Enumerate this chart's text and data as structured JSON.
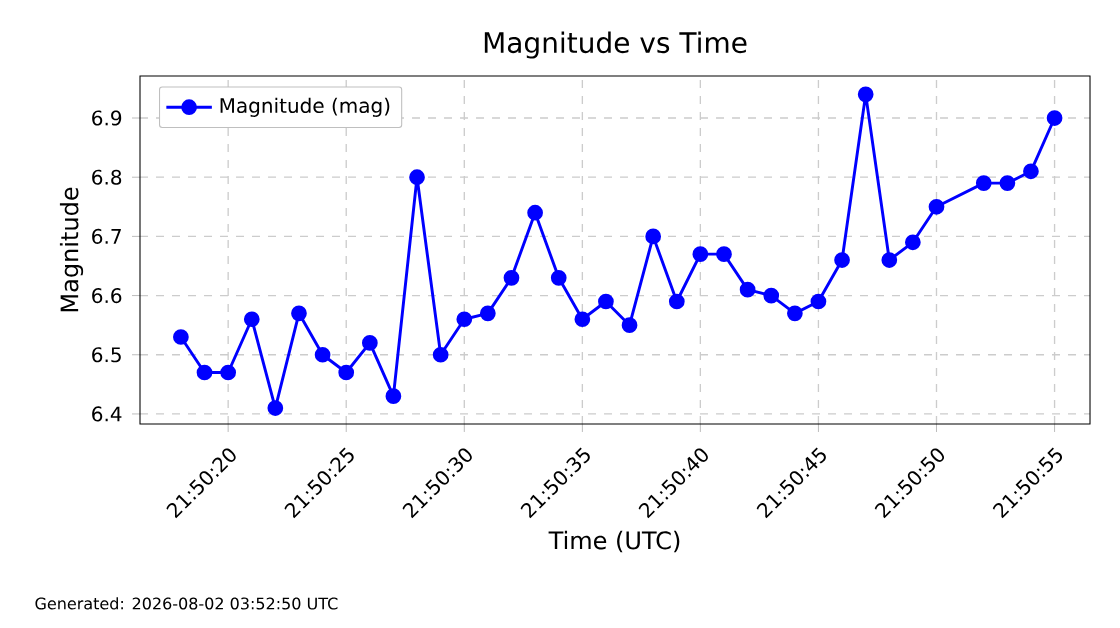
{
  "chart_data": {
    "type": "line",
    "title": "Magnitude vs Time",
    "xlabel": "Time (UTC)",
    "ylabel": "Magnitude",
    "x": [
      21.838333,
      21.838611,
      21.838889,
      21.839167,
      21.839444,
      21.839722,
      21.84,
      21.840278,
      21.840556,
      21.840833,
      21.841111,
      21.841389,
      21.841667,
      21.841944,
      21.842222,
      21.8425,
      21.842778,
      21.843056,
      21.843333,
      21.843611,
      21.843889,
      21.844167,
      21.844444,
      21.844722,
      21.845,
      21.845278,
      21.845556,
      21.845833,
      21.846111,
      21.846389,
      21.846667,
      21.846944,
      21.847222,
      21.847778,
      21.848056,
      21.848333,
      21.848611
    ],
    "series": [
      {
        "name": "Magnitude (mag)",
        "color": "#0000ff",
        "values": [
          6.53,
          6.47,
          6.47,
          6.56,
          6.41,
          6.57,
          6.5,
          6.47,
          6.52,
          6.43,
          6.8,
          6.5,
          6.56,
          6.57,
          6.63,
          6.74,
          6.63,
          6.56,
          6.59,
          6.55,
          6.7,
          6.59,
          6.67,
          6.67,
          6.61,
          6.6,
          6.57,
          6.59,
          6.66,
          6.94,
          6.66,
          6.69,
          6.75,
          6.79,
          6.79,
          6.81,
          6.9
        ]
      }
    ],
    "xlim": [
      21.837852,
      21.849028
    ],
    "ylim": [
      6.383,
      6.971
    ],
    "xticks": [
      {
        "value": 21.838889,
        "label": "21:50:20"
      },
      {
        "value": 21.840278,
        "label": "21:50:25"
      },
      {
        "value": 21.841667,
        "label": "21:50:30"
      },
      {
        "value": 21.843056,
        "label": "21:50:35"
      },
      {
        "value": 21.844444,
        "label": "21:50:40"
      },
      {
        "value": 21.845833,
        "label": "21:50:45"
      },
      {
        "value": 21.847222,
        "label": "21:50:50"
      },
      {
        "value": 21.848611,
        "label": "21:50:55"
      }
    ],
    "yticks": [
      6.4,
      6.5,
      6.6,
      6.7,
      6.8,
      6.9
    ],
    "grid": true,
    "legend": "top left",
    "marker": "circle",
    "line_style": "solid",
    "annotations": [
      "Generated: 2026-08-02 03:52:50 UTC"
    ]
  }
}
